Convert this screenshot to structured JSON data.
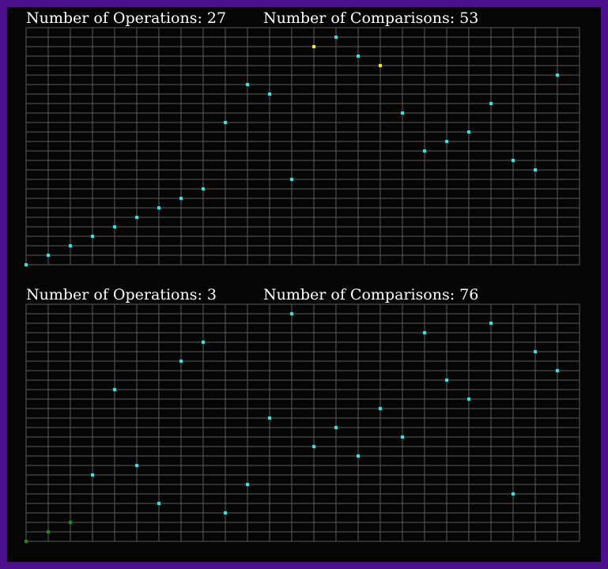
{
  "chart_data": [
    {
      "type": "scatter",
      "labels": [
        "Number of Operations: 27",
        "Number of Comparisons: 53"
      ],
      "x": [
        0,
        1,
        2,
        3,
        4,
        5,
        6,
        7,
        8,
        9,
        10,
        11,
        12,
        13,
        14,
        15,
        16,
        17,
        18,
        19,
        20,
        21,
        22,
        23,
        24
      ],
      "values": [
        0,
        1,
        2,
        3,
        4,
        5,
        6,
        7,
        8,
        15,
        19,
        18,
        9,
        23,
        24,
        22,
        21,
        16,
        12,
        13,
        14,
        17,
        11,
        10,
        20
      ],
      "colors": [
        "#2ee6e6",
        "#2ee6e6",
        "#2ee6e6",
        "#2ee6e6",
        "#2ee6e6",
        "#2ee6e6",
        "#2ee6e6",
        "#2ee6e6",
        "#2ee6e6",
        "#2ee6e6",
        "#2ee6e6",
        "#2ee6e6",
        "#2ee6e6",
        "#f5e62e",
        "#2ee6e6",
        "#2ee6e6",
        "#f5e62e",
        "#2ee6e6",
        "#2ee6e6",
        "#2ee6e6",
        "#2ee6e6",
        "#2ee6e6",
        "#2ee6e6",
        "#2ee6e6",
        "#2ee6e6"
      ],
      "xlim": [
        0,
        25
      ],
      "ylim": [
        0,
        25
      ],
      "xticks": [
        0,
        1,
        2,
        3,
        4,
        5,
        6,
        7,
        8,
        9,
        10,
        11,
        12,
        13,
        14,
        15,
        16,
        17,
        18,
        19,
        20,
        21,
        22,
        23,
        24,
        25
      ],
      "yticks": [
        0,
        1,
        2,
        3,
        4,
        5,
        6,
        7,
        8,
        9,
        10,
        11,
        12,
        13,
        14,
        15,
        16,
        17,
        18,
        19,
        20,
        21,
        22,
        23,
        24,
        25
      ],
      "grid": true
    },
    {
      "type": "scatter",
      "labels": [
        "Number of Operations: 3",
        "Number of Comparisons: 76"
      ],
      "x": [
        0,
        1,
        2,
        3,
        4,
        5,
        6,
        7,
        8,
        9,
        10,
        11,
        12,
        13,
        14,
        15,
        16,
        17,
        18,
        19,
        20,
        21,
        22,
        23,
        24
      ],
      "values": [
        0,
        1,
        2,
        7,
        16,
        8,
        4,
        19,
        21,
        3,
        6,
        13,
        24,
        10,
        12,
        9,
        14,
        11,
        22,
        17,
        15,
        23,
        5,
        20,
        18
      ],
      "colors": [
        "#1a8f1a",
        "#1a8f1a",
        "#1a8f1a",
        "#2ee6e6",
        "#2ee6e6",
        "#2ee6e6",
        "#2ee6e6",
        "#2ee6e6",
        "#2ee6e6",
        "#2ee6e6",
        "#2ee6e6",
        "#2ee6e6",
        "#2ee6e6",
        "#2ee6e6",
        "#2ee6e6",
        "#2ee6e6",
        "#2ee6e6",
        "#2ee6e6",
        "#2ee6e6",
        "#2ee6e6",
        "#2ee6e6",
        "#2ee6e6",
        "#2ee6e6",
        "#2ee6e6",
        "#2ee6e6"
      ],
      "xlim": [
        0,
        25
      ],
      "ylim": [
        0,
        25
      ],
      "xticks": [
        0,
        1,
        2,
        3,
        4,
        5,
        6,
        7,
        8,
        9,
        10,
        11,
        12,
        13,
        14,
        15,
        16,
        17,
        18,
        19,
        20,
        21,
        22,
        23,
        24,
        25
      ],
      "yticks": [
        0,
        1,
        2,
        3,
        4,
        5,
        6,
        7,
        8,
        9,
        10,
        11,
        12,
        13,
        14,
        15,
        16,
        17,
        18,
        19,
        20,
        21,
        22,
        23,
        24,
        25
      ],
      "grid": true
    }
  ]
}
